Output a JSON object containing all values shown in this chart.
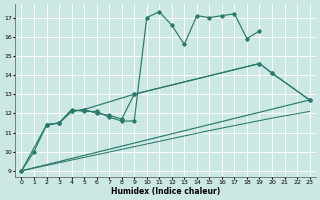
{
  "background_color": "#cce8e4",
  "grid_color": "#ffffff",
  "line_color": "#2a7a6a",
  "xlabel": "Humidex (Indice chaleur)",
  "ylim": [
    8.7,
    17.7
  ],
  "xlim": [
    -0.5,
    23.5
  ],
  "yticks": [
    9,
    10,
    11,
    12,
    13,
    14,
    15,
    16,
    17
  ],
  "xticks": [
    0,
    1,
    2,
    3,
    4,
    5,
    6,
    7,
    8,
    9,
    10,
    11,
    12,
    13,
    14,
    15,
    16,
    17,
    18,
    19,
    20,
    21,
    22,
    23
  ],
  "line1_x": [
    0,
    1,
    2,
    3,
    4,
    5,
    6,
    7,
    8,
    9,
    10,
    11,
    12,
    13,
    14,
    15,
    16,
    17,
    18,
    19
  ],
  "line1_y": [
    9.0,
    10.0,
    11.4,
    11.5,
    12.2,
    12.1,
    12.1,
    11.8,
    11.6,
    11.6,
    17.0,
    17.3,
    16.6,
    15.6,
    17.1,
    17.0,
    17.1,
    17.2,
    15.9,
    16.3
  ],
  "line2_x": [
    2,
    3,
    4,
    5,
    6,
    7,
    8,
    9,
    19,
    20,
    23
  ],
  "line2_y": [
    11.4,
    11.5,
    12.1,
    12.2,
    12.0,
    11.9,
    11.7,
    13.0,
    14.6,
    14.1,
    12.7
  ],
  "line3_x": [
    0,
    2,
    3,
    4,
    5,
    9,
    19,
    20,
    23
  ],
  "line3_y": [
    9.0,
    11.4,
    11.5,
    12.1,
    12.2,
    13.0,
    14.6,
    14.1,
    12.7
  ],
  "line4_x": [
    0,
    23
  ],
  "line4_y": [
    9.0,
    12.7
  ],
  "line5_x": [
    0,
    5,
    10,
    15,
    20,
    23
  ],
  "line5_y": [
    9.0,
    9.7,
    10.4,
    11.1,
    11.75,
    12.1
  ]
}
